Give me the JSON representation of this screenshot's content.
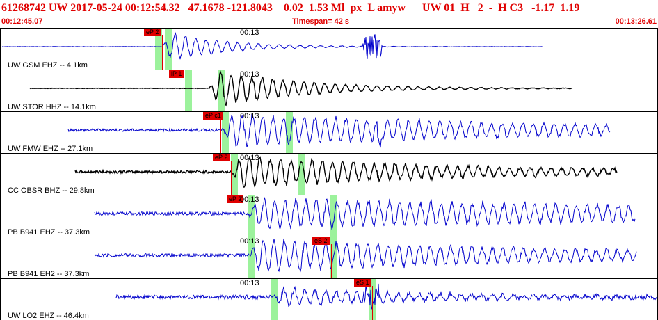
{
  "header": {
    "title": "61268742 UW 2017-05-24 00:12:54.32   47.1678 -121.8043    0.02  1.53 Ml  px  L amyw      UW 01  H   2  -  H C3   -1.17  1.19",
    "start_time": "00:12:45.07",
    "timespan": "Timespan=  42 s",
    "end_time": "00:13:26.61"
  },
  "colors": {
    "header_text": "#e00000",
    "trace_blue": "#0000cc",
    "trace_black": "#000000",
    "pick_red": "#e00000",
    "window_green": "#9cf29c"
  },
  "time_mark": "00:13",
  "traces": [
    {
      "label": "UW GSM EHZ -- 4.1km",
      "pick": "eP 2",
      "color": "blue"
    },
    {
      "label": "UW STOR HHZ -- 14.1km",
      "pick": "iP 1",
      "color": "black"
    },
    {
      "label": "UW FMW EHZ -- 27.1km",
      "pick": "eP c1",
      "color": "blue"
    },
    {
      "label": "CC OBSR BHZ -- 29.8km",
      "pick": "eP 2",
      "color": "black"
    },
    {
      "label": "PB B941 EHZ -- 37.3km",
      "pick": "eP 2",
      "color": "blue"
    },
    {
      "label": "PB B941 EH2 -- 37.3km",
      "pick": "eS 2",
      "color": "blue"
    },
    {
      "label": "UW LO2 EHZ -- 46.4km",
      "pick": "eS 1",
      "color": "blue"
    }
  ]
}
